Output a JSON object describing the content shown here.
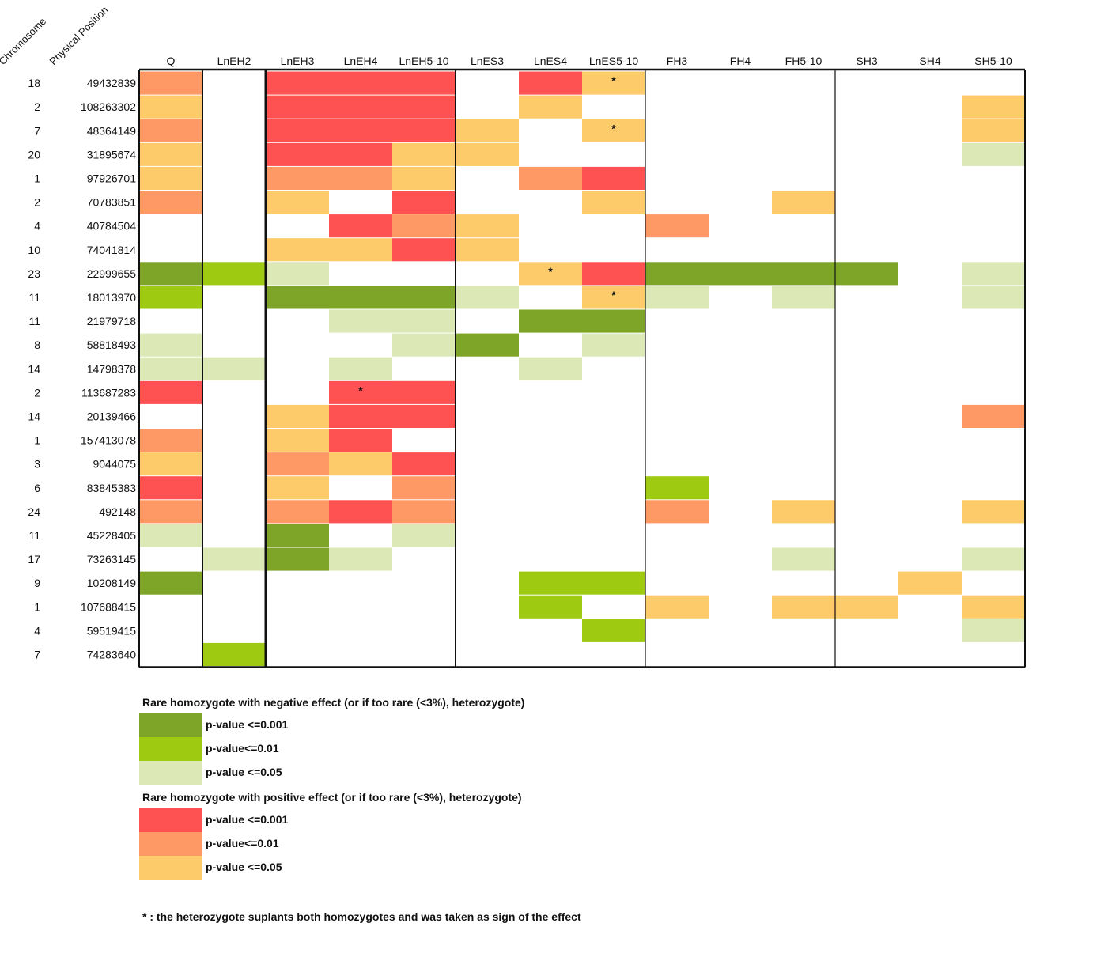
{
  "chart_data": {
    "type": "heatmap",
    "row_headers": [
      "Chromosome",
      "Physical Position"
    ],
    "columns": [
      "Q",
      "LnEH2",
      "LnEH3",
      "LnEH4",
      "LnEH5-10",
      "LnES3",
      "LnES4",
      "LnES5-10",
      "FH3",
      "FH4",
      "FH5-10",
      "SH3",
      "SH4",
      "SH5-10"
    ],
    "rows": [
      {
        "chromosome": "18",
        "position": "49432839",
        "cells": [
          "P2",
          null,
          "P1",
          "P1",
          "P1",
          null,
          "P1",
          "P3",
          null,
          null,
          null,
          null,
          null,
          null
        ],
        "stars": [
          7
        ]
      },
      {
        "chromosome": "2",
        "position": "108263302",
        "cells": [
          "P3",
          null,
          "P1",
          "P1",
          "P1",
          null,
          "P3",
          null,
          null,
          null,
          null,
          null,
          null,
          "P3"
        ],
        "stars": []
      },
      {
        "chromosome": "7",
        "position": "48364149",
        "cells": [
          "P2",
          null,
          "P1",
          "P1",
          "P1",
          "P3",
          null,
          "P3",
          null,
          null,
          null,
          null,
          null,
          "P3"
        ],
        "stars": [
          7
        ]
      },
      {
        "chromosome": "20",
        "position": "31895674",
        "cells": [
          "P3",
          null,
          "P1",
          "P1",
          "P3",
          "P3",
          null,
          null,
          null,
          null,
          null,
          null,
          null,
          "N3"
        ],
        "stars": []
      },
      {
        "chromosome": "1",
        "position": "97926701",
        "cells": [
          "P3",
          null,
          "P2",
          "P2",
          "P3",
          null,
          "P2",
          "P1",
          null,
          null,
          null,
          null,
          null,
          null
        ],
        "stars": []
      },
      {
        "chromosome": "2",
        "position": "70783851",
        "cells": [
          "P2",
          null,
          "P3",
          null,
          "P1",
          null,
          null,
          "P3",
          null,
          null,
          "P3",
          null,
          null,
          null
        ],
        "stars": []
      },
      {
        "chromosome": "4",
        "position": "40784504",
        "cells": [
          null,
          null,
          null,
          "P1",
          "P2",
          "P3",
          null,
          null,
          "P2",
          null,
          null,
          null,
          null,
          null
        ],
        "stars": []
      },
      {
        "chromosome": "10",
        "position": "74041814",
        "cells": [
          null,
          null,
          "P3",
          "P3",
          "P1",
          "P3",
          null,
          null,
          null,
          null,
          null,
          null,
          null,
          null
        ],
        "stars": []
      },
      {
        "chromosome": "23",
        "position": "22999655",
        "cells": [
          "N1",
          "N2",
          "N3",
          null,
          null,
          null,
          "P3",
          "P1",
          "N1",
          "N1",
          "N1",
          "N1",
          null,
          "N3"
        ],
        "stars": [
          6
        ]
      },
      {
        "chromosome": "11",
        "position": "18013970",
        "cells": [
          "N2",
          null,
          "N1",
          "N1",
          "N1",
          "N3",
          null,
          "P3",
          "N3",
          null,
          "N3",
          null,
          null,
          "N3"
        ],
        "stars": [
          7
        ]
      },
      {
        "chromosome": "11",
        "position": "21979718",
        "cells": [
          null,
          null,
          null,
          "N3",
          "N3",
          null,
          "N1",
          "N1",
          null,
          null,
          null,
          null,
          null,
          null
        ],
        "stars": []
      },
      {
        "chromosome": "8",
        "position": "58818493",
        "cells": [
          "N3",
          null,
          null,
          null,
          "N3",
          "N1",
          null,
          "N3",
          null,
          null,
          null,
          null,
          null,
          null
        ],
        "stars": []
      },
      {
        "chromosome": "14",
        "position": "14798378",
        "cells": [
          "N3",
          "N3",
          null,
          "N3",
          null,
          null,
          "N3",
          null,
          null,
          null,
          null,
          null,
          null,
          null
        ],
        "stars": []
      },
      {
        "chromosome": "2",
        "position": "113687283",
        "cells": [
          "P1",
          null,
          null,
          "P1",
          "P1",
          null,
          null,
          null,
          null,
          null,
          null,
          null,
          null,
          null
        ],
        "stars": [
          3
        ]
      },
      {
        "chromosome": "14",
        "position": "20139466",
        "cells": [
          null,
          null,
          "P3",
          "P1",
          "P1",
          null,
          null,
          null,
          null,
          null,
          null,
          null,
          null,
          "P2"
        ],
        "stars": []
      },
      {
        "chromosome": "1",
        "position": "157413078",
        "cells": [
          "P2",
          null,
          "P3",
          "P1",
          null,
          null,
          null,
          null,
          null,
          null,
          null,
          null,
          null,
          null
        ],
        "stars": []
      },
      {
        "chromosome": "3",
        "position": "9044075",
        "cells": [
          "P3",
          null,
          "P2",
          "P3",
          "P1",
          null,
          null,
          null,
          null,
          null,
          null,
          null,
          null,
          null
        ],
        "stars": []
      },
      {
        "chromosome": "6",
        "position": "83845383",
        "cells": [
          "P1",
          null,
          "P3",
          null,
          "P2",
          null,
          null,
          null,
          "N2",
          null,
          null,
          null,
          null,
          null
        ],
        "stars": []
      },
      {
        "chromosome": "24",
        "position": "492148",
        "cells": [
          "P2",
          null,
          "P2",
          "P1",
          "P2",
          null,
          null,
          null,
          "P2",
          null,
          "P3",
          null,
          null,
          "P3"
        ],
        "stars": []
      },
      {
        "chromosome": "11",
        "position": "45228405",
        "cells": [
          "N3",
          null,
          "N1",
          null,
          "N3",
          null,
          null,
          null,
          null,
          null,
          null,
          null,
          null,
          null
        ],
        "stars": []
      },
      {
        "chromosome": "17",
        "position": "73263145",
        "cells": [
          null,
          "N3",
          "N1",
          "N3",
          null,
          null,
          null,
          null,
          null,
          null,
          "N3",
          null,
          null,
          "N3"
        ],
        "stars": []
      },
      {
        "chromosome": "9",
        "position": "10208149",
        "cells": [
          "N1",
          null,
          null,
          null,
          null,
          null,
          "N2",
          "N2",
          null,
          null,
          null,
          null,
          "P3",
          null
        ],
        "stars": []
      },
      {
        "chromosome": "1",
        "position": "107688415",
        "cells": [
          null,
          null,
          null,
          null,
          null,
          null,
          "N2",
          null,
          "P3",
          null,
          "P3",
          "P3",
          null,
          "P3"
        ],
        "stars": []
      },
      {
        "chromosome": "4",
        "position": "59519415",
        "cells": [
          null,
          null,
          null,
          null,
          null,
          null,
          null,
          "N2",
          null,
          null,
          null,
          null,
          null,
          "N3"
        ],
        "stars": []
      },
      {
        "chromosome": "7",
        "position": "74283640",
        "cells": [
          null,
          "N2",
          null,
          null,
          null,
          null,
          null,
          null,
          null,
          null,
          null,
          null,
          null,
          null
        ],
        "stars": []
      }
    ],
    "star_symbol": "*",
    "colors": {
      "N1": "#7ea428",
      "N2": "#9ecb12",
      "N3": "#dce8b6",
      "P1": "#fe5152",
      "P2": "#fe9966",
      "P3": "#fdcb6a"
    }
  },
  "legend": {
    "negative_title": "Rare homozygote with negative effect (or if too rare (<3%), heterozygote)",
    "positive_title": "Rare homozygote with positive effect (or if too rare (<3%), heterozygote)",
    "negative_items": [
      {
        "key": "N1",
        "label": "p-value <=0.001"
      },
      {
        "key": "N2",
        "label": "p-value<=0.01"
      },
      {
        "key": "N3",
        "label": "p-value <=0.05"
      }
    ],
    "positive_items": [
      {
        "key": "P1",
        "label": "p-value <=0.001"
      },
      {
        "key": "P2",
        "label": "p-value<=0.01"
      },
      {
        "key": "P3",
        "label": "p-value <=0.05"
      }
    ]
  },
  "footnote": "* : the heterozygote suplants both homozygotes and was taken as sign of the effect"
}
